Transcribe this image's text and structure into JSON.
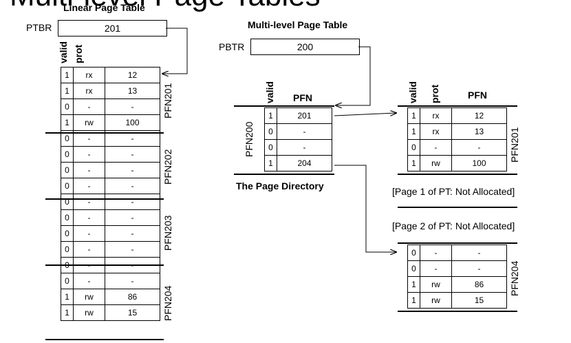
{
  "slide": {
    "title": "Multi-level Page Tables"
  },
  "linear": {
    "heading": "Linear Page Table",
    "reg_label": "PTBR",
    "reg_value": "201",
    "col_valid": "valid",
    "col_prot": "prot",
    "groups": [
      {
        "pfn": "PFN201",
        "rows": [
          [
            "1",
            "rx",
            "12"
          ],
          [
            "1",
            "rx",
            "13"
          ],
          [
            "0",
            "-",
            "-"
          ],
          [
            "1",
            "rw",
            "100"
          ]
        ]
      },
      {
        "pfn": "PFN202",
        "rows": [
          [
            "0",
            "-",
            "-"
          ],
          [
            "0",
            "-",
            "-"
          ],
          [
            "0",
            "-",
            "-"
          ],
          [
            "0",
            "-",
            "-"
          ]
        ]
      },
      {
        "pfn": "PFN203",
        "rows": [
          [
            "0",
            "-",
            "-"
          ],
          [
            "0",
            "-",
            "-"
          ],
          [
            "0",
            "-",
            "-"
          ],
          [
            "0",
            "-",
            "-"
          ]
        ]
      },
      {
        "pfn": "PFN204",
        "rows": [
          [
            "0",
            "-",
            "-"
          ],
          [
            "0",
            "-",
            "-"
          ],
          [
            "1",
            "rw",
            "86"
          ],
          [
            "1",
            "rw",
            "15"
          ]
        ]
      }
    ]
  },
  "multi": {
    "heading": "Multi-level Page Table",
    "reg_label": "PBTR",
    "reg_value": "200",
    "directory": {
      "col_valid": "valid",
      "col_pfn": "PFN",
      "pfn": "PFN200",
      "caption": "The Page Directory",
      "rows": [
        [
          "1",
          "201"
        ],
        [
          "0",
          "-"
        ],
        [
          "0",
          "-"
        ],
        [
          "1",
          "204"
        ]
      ]
    },
    "pt201": {
      "col_valid": "valid",
      "col_prot": "prot",
      "col_pfn": "PFN",
      "pfn": "PFN201",
      "rows": [
        [
          "1",
          "rx",
          "12"
        ],
        [
          "1",
          "rx",
          "13"
        ],
        [
          "0",
          "-",
          "-"
        ],
        [
          "1",
          "rw",
          "100"
        ]
      ]
    },
    "note1": "[Page 1 of PT: Not Allocated]",
    "note2": "[Page 2 of PT: Not Allocated]",
    "pt204": {
      "pfn": "PFN204",
      "rows": [
        [
          "0",
          "-",
          "-"
        ],
        [
          "0",
          "-",
          "-"
        ],
        [
          "1",
          "rw",
          "86"
        ],
        [
          "1",
          "rw",
          "15"
        ]
      ]
    }
  }
}
